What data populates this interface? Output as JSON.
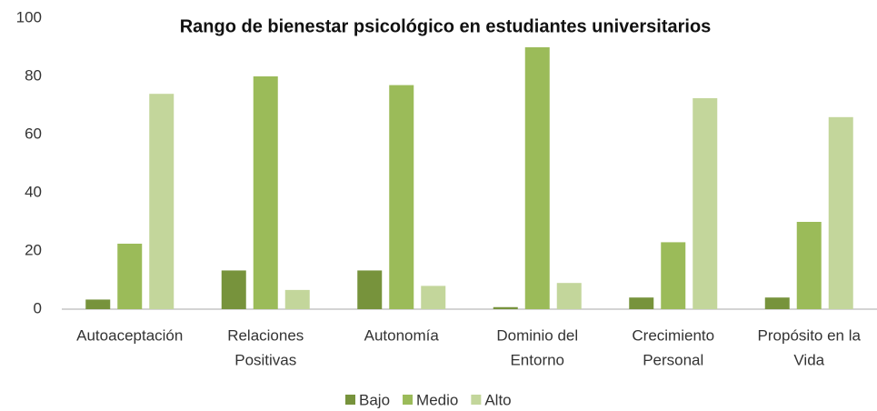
{
  "chart_data": {
    "type": "bar",
    "title": "Rango de bienestar psicológico en estudiantes universitarios",
    "categories": [
      [
        "Autoaceptación"
      ],
      [
        "Relaciones",
        "Positivas"
      ],
      [
        "Autonomía"
      ],
      [
        "Dominio del",
        "Entorno"
      ],
      [
        "Crecimiento",
        "Personal"
      ],
      [
        "Propósito en la",
        "Vida"
      ]
    ],
    "series": [
      {
        "name": "Bajo",
        "color": "#77933c",
        "values": [
          3.3,
          13.3,
          13.3,
          0.7,
          4,
          4
        ]
      },
      {
        "name": "Medio",
        "color": "#9bbb59",
        "values": [
          22.5,
          80,
          77,
          90,
          23,
          30
        ]
      },
      {
        "name": "Alto",
        "color": "#c3d69b",
        "values": [
          74,
          6.6,
          8,
          9,
          72.5,
          66
        ]
      }
    ],
    "ylim": [
      0,
      100
    ],
    "yticks": [
      0,
      20,
      40,
      60,
      80,
      100
    ],
    "grid": false,
    "legend": "bottom"
  }
}
